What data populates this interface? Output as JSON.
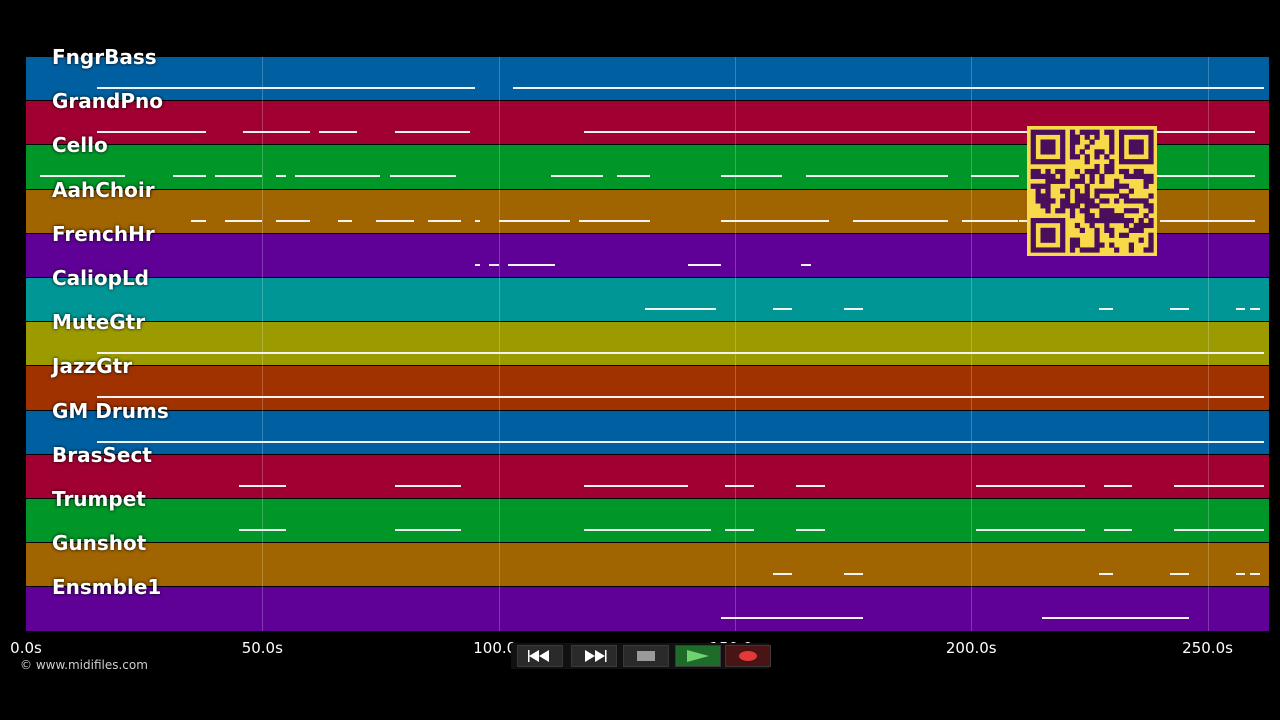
{
  "tracks": [
    {
      "name": "FngrBass",
      "color": "#005fa0"
    },
    {
      "name": "GrandPno",
      "color": "#a00032"
    },
    {
      "name": "Cello",
      "color": "#009628"
    },
    {
      "name": "AahChoir",
      "color": "#a06400"
    },
    {
      "name": "FrenchHr",
      "color": "#5f0096"
    },
    {
      "name": "CaliopLd",
      "color": "#009696"
    },
    {
      "name": "MuteGtr",
      "color": "#9b9b00"
    },
    {
      "name": "JazzGtr",
      "color": "#a03200"
    },
    {
      "name": "GM Drums",
      "color": "#005fa0"
    },
    {
      "name": "BrasSect",
      "color": "#a00032"
    },
    {
      "name": "Trumpet",
      "color": "#009628"
    },
    {
      "name": "Gunshot",
      "color": "#a06400"
    },
    {
      "name": "Ensmble1",
      "color": "#5f0096"
    }
  ],
  "timeline": {
    "max_seconds": 263,
    "ticks": [
      {
        "seconds": 0,
        "label": "0.0s"
      },
      {
        "seconds": 50,
        "label": "50.0s"
      },
      {
        "seconds": 100,
        "label": "100.0s"
      },
      {
        "seconds": 150,
        "label": "150.0s"
      },
      {
        "seconds": 200,
        "label": "200.0s"
      },
      {
        "seconds": 250,
        "label": "250.0s"
      }
    ]
  },
  "notes": [
    {
      "track": 0,
      "segments": [
        [
          15,
          95
        ],
        [
          103,
          147
        ],
        [
          147,
          262
        ]
      ]
    },
    {
      "track": 1,
      "segments": [
        [
          15,
          38
        ],
        [
          46,
          60
        ],
        [
          62,
          70
        ],
        [
          78,
          94
        ],
        [
          118,
          130
        ],
        [
          130,
          215
        ],
        [
          215,
          260
        ]
      ]
    },
    {
      "track": 2,
      "segments": [
        [
          3,
          21
        ],
        [
          31,
          38
        ],
        [
          40,
          50
        ],
        [
          53,
          55
        ],
        [
          57,
          75
        ],
        [
          77,
          91
        ],
        [
          111,
          122
        ],
        [
          125,
          132
        ],
        [
          147,
          160
        ],
        [
          165,
          175
        ],
        [
          175,
          195
        ],
        [
          200,
          205
        ],
        [
          205,
          210
        ],
        [
          225,
          260
        ]
      ]
    },
    {
      "track": 3,
      "segments": [
        [
          35,
          38
        ],
        [
          42,
          50
        ],
        [
          53,
          60
        ],
        [
          66,
          69
        ],
        [
          74,
          82
        ],
        [
          85,
          92
        ],
        [
          95,
          96
        ],
        [
          100,
          115
        ],
        [
          117,
          125
        ],
        [
          125,
          132
        ],
        [
          147,
          170
        ],
        [
          175,
          195
        ],
        [
          198,
          210
        ],
        [
          210,
          215
        ],
        [
          240,
          260
        ]
      ]
    },
    {
      "track": 4,
      "segments": [
        [
          95,
          96
        ],
        [
          98,
          100
        ],
        [
          102,
          112
        ],
        [
          140,
          147
        ],
        [
          164,
          166
        ]
      ]
    },
    {
      "track": 5,
      "segments": [
        [
          131,
          146
        ],
        [
          158,
          162
        ],
        [
          173,
          177
        ],
        [
          227,
          230
        ],
        [
          242,
          246
        ],
        [
          256,
          258
        ],
        [
          259,
          261
        ]
      ]
    },
    {
      "track": 6,
      "segments": [
        [
          15,
          262
        ]
      ]
    },
    {
      "track": 7,
      "segments": [
        [
          15,
          262
        ]
      ]
    },
    {
      "track": 8,
      "segments": [
        [
          15,
          262
        ]
      ]
    },
    {
      "track": 9,
      "segments": [
        [
          45,
          55
        ],
        [
          78,
          92
        ],
        [
          118,
          140
        ],
        [
          148,
          154
        ],
        [
          163,
          169
        ],
        [
          201,
          220
        ],
        [
          218,
          224
        ],
        [
          228,
          234
        ],
        [
          243,
          262
        ]
      ]
    },
    {
      "track": 10,
      "segments": [
        [
          45,
          55
        ],
        [
          78,
          92
        ],
        [
          118,
          145
        ],
        [
          148,
          154
        ],
        [
          163,
          169
        ],
        [
          201,
          220
        ],
        [
          218,
          224
        ],
        [
          228,
          234
        ],
        [
          243,
          262
        ]
      ]
    },
    {
      "track": 11,
      "segments": [
        [
          158,
          162
        ],
        [
          173,
          177
        ],
        [
          227,
          230
        ],
        [
          242,
          246
        ],
        [
          256,
          258
        ],
        [
          259,
          261
        ]
      ]
    },
    {
      "track": 12,
      "segments": [
        [
          147,
          158
        ],
        [
          158,
          172
        ],
        [
          172,
          177
        ],
        [
          215,
          227
        ],
        [
          227,
          246
        ]
      ]
    }
  ],
  "copyright": "© www.midifiles.com",
  "transport": {
    "rewind_icon": "rewind-icon",
    "fast_forward_icon": "fast-forward-icon",
    "stop_icon": "stop-icon",
    "play_icon": "play-icon",
    "record_icon": "record-icon"
  }
}
